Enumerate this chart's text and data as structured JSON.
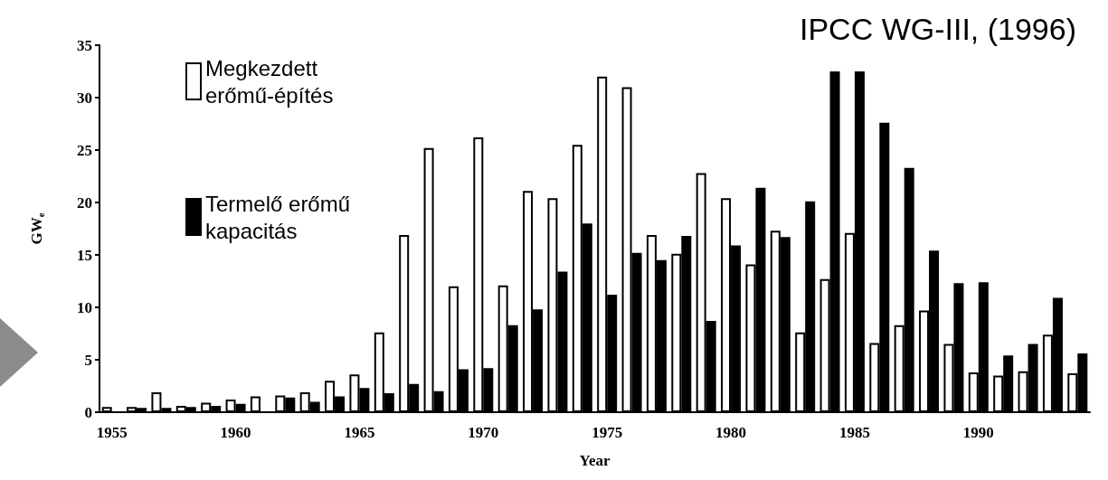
{
  "chart_data": {
    "type": "bar",
    "title": "IPCC WG-III, (1996)",
    "xlabel": "Year",
    "ylabel": "GW$_{e}$",
    "categories": [
      "1955",
      null,
      null,
      null,
      null,
      "1960",
      null,
      null,
      null,
      null,
      "1965",
      null,
      null,
      null,
      null,
      "1970",
      null,
      null,
      null,
      null,
      "1975",
      null,
      null,
      null,
      null,
      "1980",
      null,
      null,
      null,
      null,
      "1985",
      null,
      null,
      null,
      null,
      "1990",
      null,
      null,
      null,
      null
    ],
    "series": [
      {
        "name": "Megkezdett erőmű-építés",
        "color": "#ffffff",
        "values": [
          0.5,
          0.5,
          1.9,
          0.6,
          0.9,
          1.2,
          1.5,
          1.6,
          1.9,
          3.0,
          3.6,
          7.6,
          16.9,
          25.2,
          12.0,
          26.2,
          12.1,
          21.1,
          20.4,
          25.5,
          32.0,
          31.0,
          16.9,
          15.1,
          22.8,
          20.4,
          14.1,
          17.3,
          7.6,
          12.7,
          17.1,
          6.6,
          8.3,
          9.7,
          6.5,
          3.8,
          3.5,
          3.9,
          7.4,
          3.7
        ]
      },
      {
        "name": "Termelő erőmű kapacitás",
        "color": "#000000",
        "values": [
          0,
          0.4,
          0.4,
          0.5,
          0.6,
          0.8,
          0,
          1.4,
          1.0,
          1.5,
          2.3,
          1.8,
          2.7,
          2.0,
          4.1,
          4.2,
          8.3,
          9.8,
          13.4,
          18.0,
          11.2,
          15.2,
          14.5,
          16.8,
          8.7,
          15.9,
          21.4,
          16.7,
          20.1,
          32.5,
          32.5,
          27.6,
          23.3,
          15.4,
          12.3,
          12.4,
          5.4,
          6.5,
          10.9,
          5.6
        ]
      }
    ],
    "ylim": [
      0,
      35
    ],
    "yticks": [
      0,
      5,
      10,
      15,
      20,
      25,
      30,
      35
    ],
    "grid": false,
    "legend": "top left"
  }
}
